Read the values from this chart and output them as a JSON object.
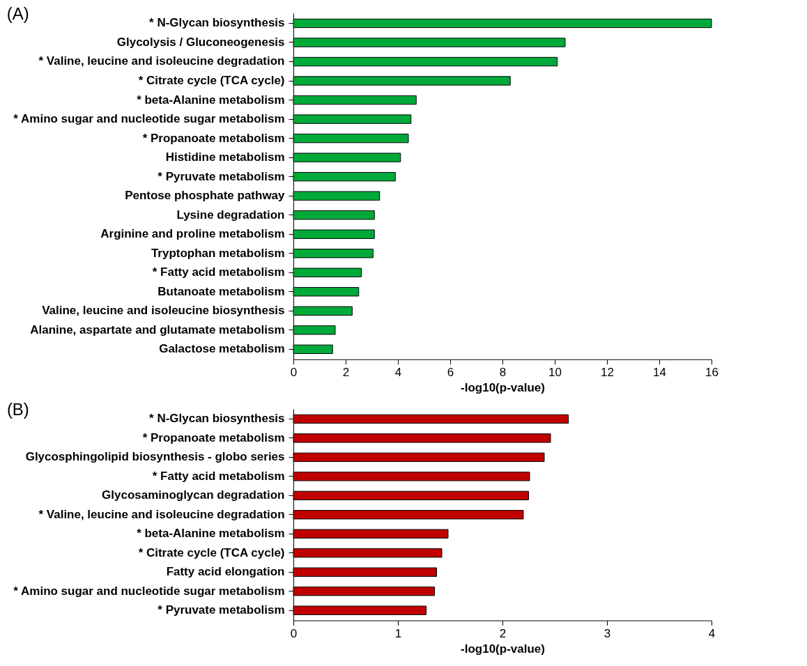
{
  "chart_data": [
    {
      "type": "bar",
      "orientation": "horizontal",
      "title": "(A)",
      "xlabel": "-log10(p-value)",
      "color": "#00aa3a",
      "categories": [
        "* N-Glycan biosynthesis",
        "Glycolysis / Gluconeogenesis",
        "* Valine, leucine and isoleucine degradation",
        "* Citrate cycle (TCA cycle)",
        "* beta-Alanine metabolism",
        "* Amino sugar and nucleotide sugar metabolism",
        "* Propanoate metabolism",
        "Histidine metabolism",
        "* Pyruvate metabolism",
        "Pentose phosphate pathway",
        "Lysine degradation",
        "Arginine and proline metabolism",
        "Tryptophan metabolism",
        "* Fatty acid metabolism",
        "Butanoate metabolism",
        "Valine, leucine and isoleucine biosynthesis",
        "Alanine, aspartate and glutamate metabolism",
        "Galactose metabolism"
      ],
      "values": [
        16,
        10.4,
        10.1,
        8.3,
        4.7,
        4.5,
        4.4,
        4.1,
        3.9,
        3.3,
        3.1,
        3.1,
        3.05,
        2.6,
        2.5,
        2.25,
        1.6,
        1.5
      ],
      "xlim": [
        0,
        16
      ],
      "xticks": [
        0,
        2,
        4,
        6,
        8,
        10,
        12,
        14,
        16
      ],
      "grid": false
    },
    {
      "type": "bar",
      "orientation": "horizontal",
      "title": "(B)",
      "xlabel": "-log10(p-value)",
      "color": "#c00000",
      "categories": [
        "* N-Glycan biosynthesis",
        "* Propanoate metabolism",
        "Glycosphingolipid biosynthesis - globo series",
        "* Fatty acid metabolism",
        "Glycosaminoglycan degradation",
        "* Valine, leucine and isoleucine degradation",
        "* beta-Alanine metabolism",
        "* Citrate cycle (TCA cycle)",
        "Fatty acid elongation",
        "* Amino sugar and nucleotide sugar metabolism",
        "* Pyruvate metabolism"
      ],
      "values": [
        2.63,
        2.46,
        2.4,
        2.26,
        2.25,
        2.2,
        1.48,
        1.42,
        1.37,
        1.35,
        1.27
      ],
      "xlim": [
        0,
        4
      ],
      "xticks": [
        0,
        1,
        2,
        3,
        4
      ],
      "grid": false
    }
  ]
}
